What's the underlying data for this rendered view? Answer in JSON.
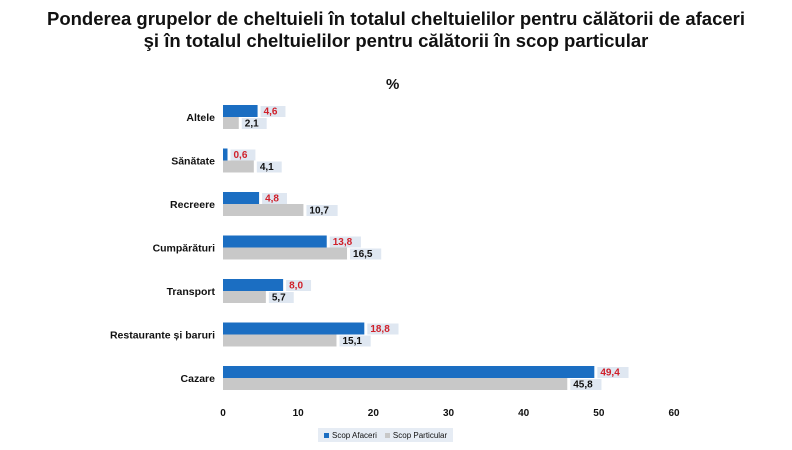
{
  "colors": {
    "business": "#1b6ec2",
    "personal": "#c8c8c8",
    "business_label": "#d0202a",
    "personal_label": "#111111",
    "label_box": "#dfe7f1"
  },
  "chart_data": {
    "type": "bar",
    "orientation": "horizontal",
    "title": "Ponderea grupelor de cheltuieli în totalul cheltuielilor pentru călătorii de afaceri și în totalul cheltuielilor pentru călătorii în scop particular",
    "title_lines": [
      "Ponderea grupelor de cheltuieli în totalul cheltuielilor pentru călătorii de afaceri",
      "şi în totalul cheltuielilor pentru călătorii în scop particular"
    ],
    "unit": "%",
    "categories": [
      "Altele",
      "Sănătate",
      "Recreere",
      "Cumpărături",
      "Transport",
      "Restaurante și baruri",
      "Cazare"
    ],
    "series": [
      {
        "name": "Scop Afaceri",
        "values": [
          4.6,
          0.6,
          4.8,
          13.8,
          8.0,
          18.8,
          49.4
        ],
        "labels": [
          "4,6",
          "0,6",
          "4,8",
          "13,8",
          "8,0",
          "18,8",
          "49,4"
        ]
      },
      {
        "name": "Scop Particular",
        "values": [
          2.1,
          4.1,
          10.7,
          16.5,
          5.7,
          15.1,
          45.8
        ],
        "labels": [
          "2,1",
          "4,1",
          "10,7",
          "16,5",
          "5,7",
          "15,1",
          "45,8"
        ]
      }
    ],
    "xlim": [
      0,
      60
    ],
    "xticks": [
      0,
      10,
      20,
      30,
      40,
      50,
      60
    ],
    "grid": false,
    "legend_position": "bottom"
  }
}
